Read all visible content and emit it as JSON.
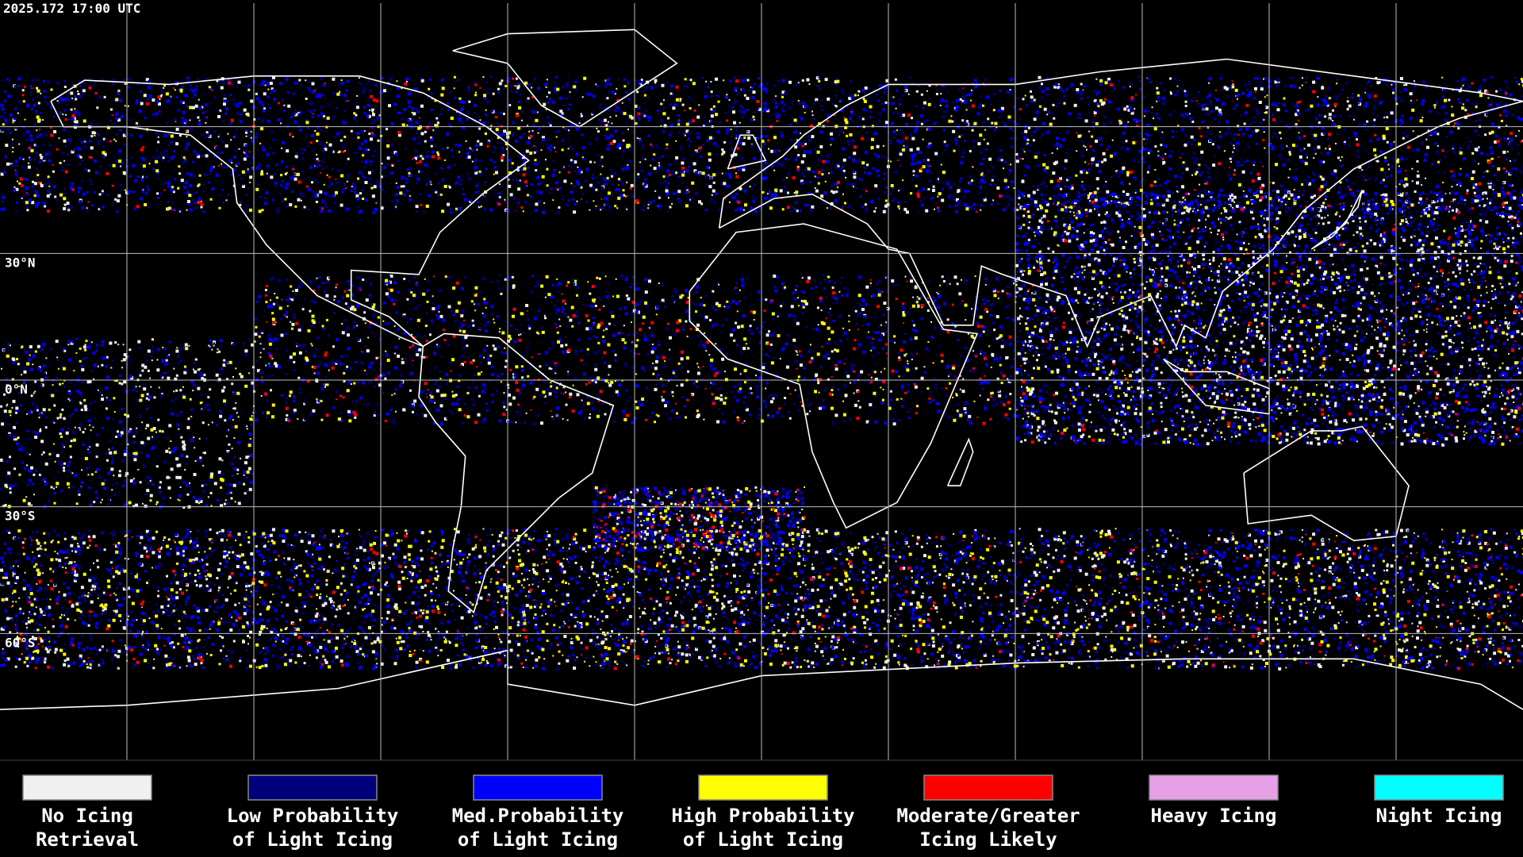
{
  "timestamp": "2025.172 17:00 UTC",
  "latitude_labels": [
    "30°N",
    "0°N",
    "30°S",
    "60°S"
  ],
  "legend": [
    {
      "lines": [
        "No Icing",
        "Retrieval"
      ],
      "color": "#f0f0f0"
    },
    {
      "lines": [
        "Low Probability",
        "of Light Icing"
      ],
      "color": "#00007a"
    },
    {
      "lines": [
        "Med.Probability",
        "of Light Icing"
      ],
      "color": "#0000ff"
    },
    {
      "lines": [
        "High Probability",
        "of Light Icing"
      ],
      "color": "#ffff00"
    },
    {
      "lines": [
        "Moderate/Greater",
        "Icing Likely"
      ],
      "color": "#ff0000"
    },
    {
      "lines": [
        "Heavy Icing"
      ],
      "color": "#e6a0e6"
    },
    {
      "lines": [
        "Night Icing"
      ],
      "color": "#00ffff"
    }
  ]
}
